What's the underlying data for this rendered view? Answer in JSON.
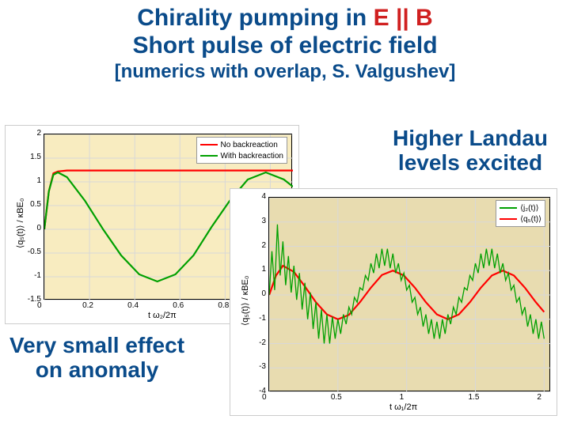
{
  "title": {
    "line1_plain": "Chirality pumping in ",
    "line1_red": "E || B",
    "line2": "Short pulse of electric field",
    "subtitle": "[numerics with overlap, S. Valgushev]"
  },
  "annotation_right": {
    "line1": "Higher Landau",
    "line2": "levels excited"
  },
  "annotation_left": {
    "line1": "Very small effect",
    "line2": "on anomaly"
  },
  "chart1": {
    "type": "line",
    "xlabel": "t ω₂/2π",
    "ylabel": "⟨q₅(t)⟩ / κBE₀",
    "xlim": [
      0,
      1.1
    ],
    "xtick_step": 0.2,
    "ylim": [
      -1.5,
      2.0
    ],
    "ytick_step": 0.5,
    "grid_color": "#d8d8d8",
    "background_color": "#f8ecc0",
    "legend": [
      {
        "label": "No backreaction",
        "color": "#ff0000"
      },
      {
        "label": "With backreaction",
        "color": "#00a000"
      }
    ],
    "series": {
      "no_backreaction": {
        "color": "#ff0000",
        "width": 2.2,
        "points": [
          [
            0,
            0
          ],
          [
            0.02,
            0.8
          ],
          [
            0.04,
            1.18
          ],
          [
            0.06,
            1.22
          ],
          [
            0.1,
            1.24
          ],
          [
            0.3,
            1.24
          ],
          [
            0.6,
            1.24
          ],
          [
            0.9,
            1.24
          ],
          [
            1.1,
            1.24
          ]
        ]
      },
      "with_backreaction": {
        "color": "#00a000",
        "width": 2.2,
        "points": [
          [
            0,
            0
          ],
          [
            0.02,
            0.8
          ],
          [
            0.04,
            1.15
          ],
          [
            0.06,
            1.2
          ],
          [
            0.1,
            1.1
          ],
          [
            0.18,
            0.6
          ],
          [
            0.26,
            0.0
          ],
          [
            0.34,
            -0.55
          ],
          [
            0.42,
            -0.95
          ],
          [
            0.5,
            -1.1
          ],
          [
            0.58,
            -0.95
          ],
          [
            0.66,
            -0.55
          ],
          [
            0.74,
            0.05
          ],
          [
            0.82,
            0.6
          ],
          [
            0.9,
            1.05
          ],
          [
            0.98,
            1.2
          ],
          [
            1.06,
            1.05
          ],
          [
            1.1,
            0.9
          ]
        ]
      }
    }
  },
  "chart2": {
    "type": "line",
    "xlabel": "t ω₁/2π",
    "ylabel": "⟨q₅(t)⟩ / κBE₀",
    "xlim": [
      0,
      2.05
    ],
    "xtick_step": 0.5,
    "ylim": [
      -4.0,
      4.0
    ],
    "ytick_step": 1.0,
    "grid_color": "#d8d8d8",
    "background_color": "#e8dcb0",
    "legend": [
      {
        "label": "⟨j₂(t)⟩",
        "color": "#00a000"
      },
      {
        "label": "⟨q₅(t)⟩",
        "color": "#ff0000"
      }
    ],
    "series": {
      "q5": {
        "color": "#ff0000",
        "width": 2.2,
        "points": [
          [
            0,
            0
          ],
          [
            0.05,
            0.8
          ],
          [
            0.1,
            1.2
          ],
          [
            0.18,
            0.95
          ],
          [
            0.26,
            0.35
          ],
          [
            0.34,
            -0.3
          ],
          [
            0.42,
            -0.8
          ],
          [
            0.5,
            -1.0
          ],
          [
            0.58,
            -0.82
          ],
          [
            0.66,
            -0.3
          ],
          [
            0.74,
            0.3
          ],
          [
            0.82,
            0.82
          ],
          [
            0.9,
            1.0
          ],
          [
            0.98,
            0.8
          ],
          [
            1.06,
            0.3
          ],
          [
            1.14,
            -0.3
          ],
          [
            1.22,
            -0.8
          ],
          [
            1.3,
            -1.0
          ],
          [
            1.38,
            -0.8
          ],
          [
            1.46,
            -0.3
          ],
          [
            1.54,
            0.3
          ],
          [
            1.62,
            0.8
          ],
          [
            1.7,
            1.0
          ],
          [
            1.78,
            0.8
          ],
          [
            1.86,
            0.3
          ],
          [
            1.94,
            -0.3
          ],
          [
            2.0,
            -0.7
          ]
        ]
      },
      "jz": {
        "color": "#00a000",
        "width": 1.3,
        "points": [
          [
            0,
            0
          ],
          [
            0.02,
            1.8
          ],
          [
            0.04,
            0.2
          ],
          [
            0.06,
            2.9
          ],
          [
            0.08,
            0.8
          ],
          [
            0.1,
            2.2
          ],
          [
            0.12,
            0.4
          ],
          [
            0.14,
            1.6
          ],
          [
            0.16,
            0.1
          ],
          [
            0.18,
            1.2
          ],
          [
            0.2,
            -0.2
          ],
          [
            0.22,
            0.9
          ],
          [
            0.24,
            -0.6
          ],
          [
            0.26,
            0.5
          ],
          [
            0.28,
            -1.0
          ],
          [
            0.3,
            0.1
          ],
          [
            0.32,
            -1.4
          ],
          [
            0.34,
            -0.3
          ],
          [
            0.36,
            -1.8
          ],
          [
            0.38,
            -0.6
          ],
          [
            0.4,
            -2.0
          ],
          [
            0.42,
            -0.8
          ],
          [
            0.44,
            -2.0
          ],
          [
            0.46,
            -0.9
          ],
          [
            0.48,
            -1.8
          ],
          [
            0.5,
            -1.0
          ],
          [
            0.52,
            -1.6
          ],
          [
            0.54,
            -0.8
          ],
          [
            0.56,
            -1.2
          ],
          [
            0.58,
            -0.5
          ],
          [
            0.6,
            -0.8
          ],
          [
            0.62,
            -0.1
          ],
          [
            0.64,
            -0.3
          ],
          [
            0.66,
            0.3
          ],
          [
            0.68,
            0.2
          ],
          [
            0.7,
            0.8
          ],
          [
            0.72,
            0.6
          ],
          [
            0.74,
            1.3
          ],
          [
            0.76,
            0.9
          ],
          [
            0.78,
            1.7
          ],
          [
            0.8,
            1.1
          ],
          [
            0.82,
            1.9
          ],
          [
            0.84,
            1.2
          ],
          [
            0.86,
            1.9
          ],
          [
            0.88,
            1.1
          ],
          [
            0.9,
            1.7
          ],
          [
            0.92,
            0.9
          ],
          [
            0.94,
            1.3
          ],
          [
            0.96,
            0.6
          ],
          [
            0.98,
            0.9
          ],
          [
            1.0,
            0.2
          ],
          [
            1.02,
            0.4
          ],
          [
            1.04,
            -0.3
          ],
          [
            1.06,
            -0.1
          ],
          [
            1.08,
            -0.8
          ],
          [
            1.1,
            -0.5
          ],
          [
            1.12,
            -1.3
          ],
          [
            1.14,
            -0.8
          ],
          [
            1.16,
            -1.6
          ],
          [
            1.18,
            -1.0
          ],
          [
            1.2,
            -1.8
          ],
          [
            1.22,
            -1.1
          ],
          [
            1.24,
            -1.8
          ],
          [
            1.26,
            -1.0
          ],
          [
            1.28,
            -1.6
          ],
          [
            1.3,
            -0.8
          ],
          [
            1.32,
            -1.2
          ],
          [
            1.34,
            -0.5
          ],
          [
            1.36,
            -0.8
          ],
          [
            1.38,
            -0.1
          ],
          [
            1.4,
            -0.3
          ],
          [
            1.42,
            0.3
          ],
          [
            1.44,
            0.2
          ],
          [
            1.46,
            0.8
          ],
          [
            1.48,
            0.6
          ],
          [
            1.5,
            1.3
          ],
          [
            1.52,
            0.9
          ],
          [
            1.54,
            1.7
          ],
          [
            1.56,
            1.1
          ],
          [
            1.58,
            1.9
          ],
          [
            1.6,
            1.2
          ],
          [
            1.62,
            1.9
          ],
          [
            1.64,
            1.1
          ],
          [
            1.66,
            1.7
          ],
          [
            1.68,
            0.9
          ],
          [
            1.7,
            1.3
          ],
          [
            1.72,
            0.6
          ],
          [
            1.74,
            0.9
          ],
          [
            1.76,
            0.2
          ],
          [
            1.78,
            0.4
          ],
          [
            1.8,
            -0.3
          ],
          [
            1.82,
            -0.1
          ],
          [
            1.84,
            -0.8
          ],
          [
            1.86,
            -0.5
          ],
          [
            1.88,
            -1.3
          ],
          [
            1.9,
            -0.8
          ],
          [
            1.92,
            -1.6
          ],
          [
            1.94,
            -1.0
          ],
          [
            1.96,
            -1.8
          ],
          [
            1.98,
            -1.1
          ],
          [
            2.0,
            -1.8
          ]
        ]
      }
    }
  }
}
